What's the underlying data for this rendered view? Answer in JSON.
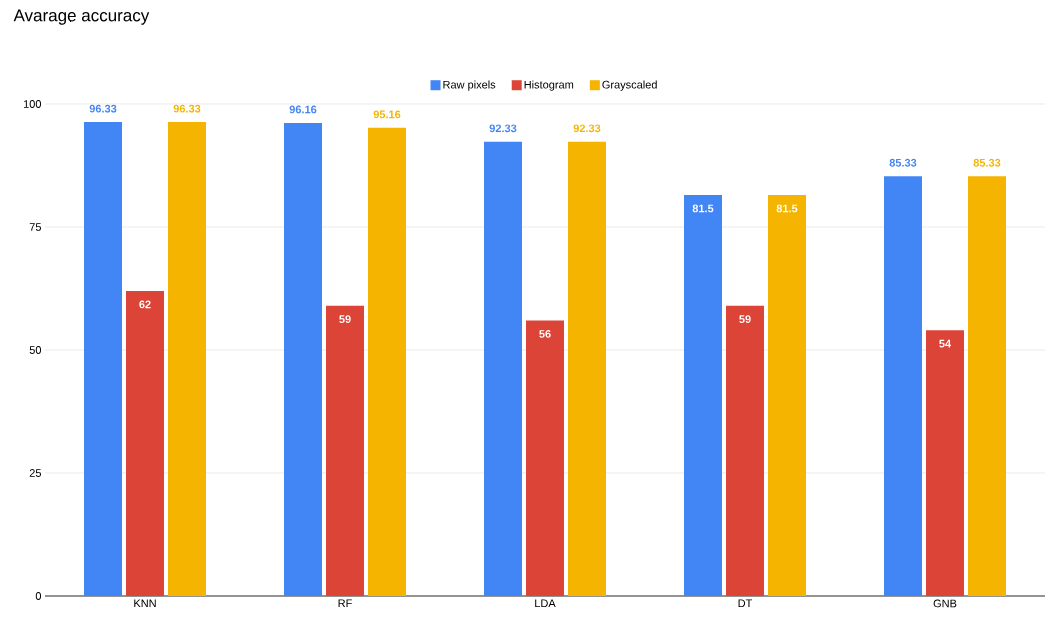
{
  "chart_data": {
    "type": "bar",
    "title": "Avarage accuracy",
    "categories": [
      "KNN",
      "RF",
      "LDA",
      "DT",
      "GNB"
    ],
    "series": [
      {
        "name": "Raw pixels",
        "color": "#4285f4",
        "values": [
          96.33,
          96.16,
          92.33,
          81.5,
          85.33
        ]
      },
      {
        "name": "Histogram",
        "color": "#db4437",
        "values": [
          62,
          59,
          56,
          59,
          54
        ]
      },
      {
        "name": "Grayscaled",
        "color": "#f4b400",
        "values": [
          96.33,
          95.16,
          92.33,
          81.5,
          85.33
        ]
      }
    ],
    "ylim": [
      0,
      100
    ],
    "yticks": [
      0,
      25,
      50,
      75,
      100
    ],
    "grid": "y",
    "legend": "top",
    "data_labels": true
  }
}
